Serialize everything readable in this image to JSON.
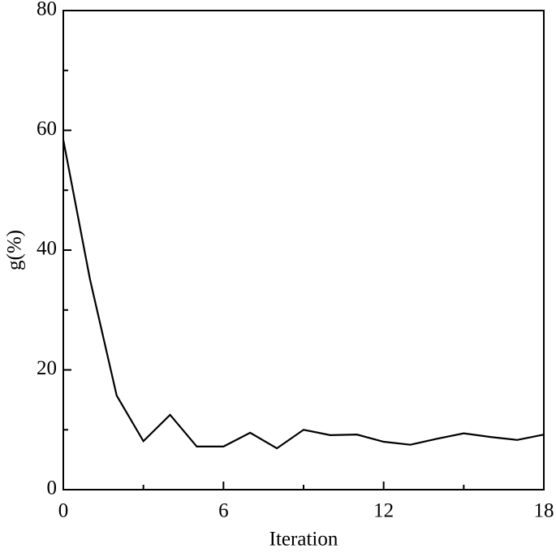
{
  "chart_data": {
    "type": "line",
    "x_label": "Iteration",
    "y_label": "g(%)",
    "x": [
      0,
      1,
      2,
      3,
      4,
      5,
      6,
      7,
      8,
      9,
      10,
      11,
      12,
      13,
      14,
      15,
      16,
      17,
      18
    ],
    "series": [
      {
        "name": "g",
        "color": "#000000",
        "values": [
          58.4,
          35.1,
          15.7,
          8.1,
          12.5,
          7.2,
          7.2,
          9.5,
          6.9,
          10.0,
          9.1,
          9.2,
          8.0,
          7.5,
          8.5,
          9.4,
          8.8,
          8.3,
          9.2
        ]
      }
    ],
    "xlim": [
      0,
      18
    ],
    "ylim": [
      0,
      80
    ],
    "xticks": [
      0,
      6,
      12,
      18
    ],
    "yticks": [
      0,
      20,
      40,
      60,
      80
    ],
    "xminorticks": [
      3,
      9,
      15
    ],
    "yminorticks": [
      10,
      30,
      50,
      70
    ]
  }
}
